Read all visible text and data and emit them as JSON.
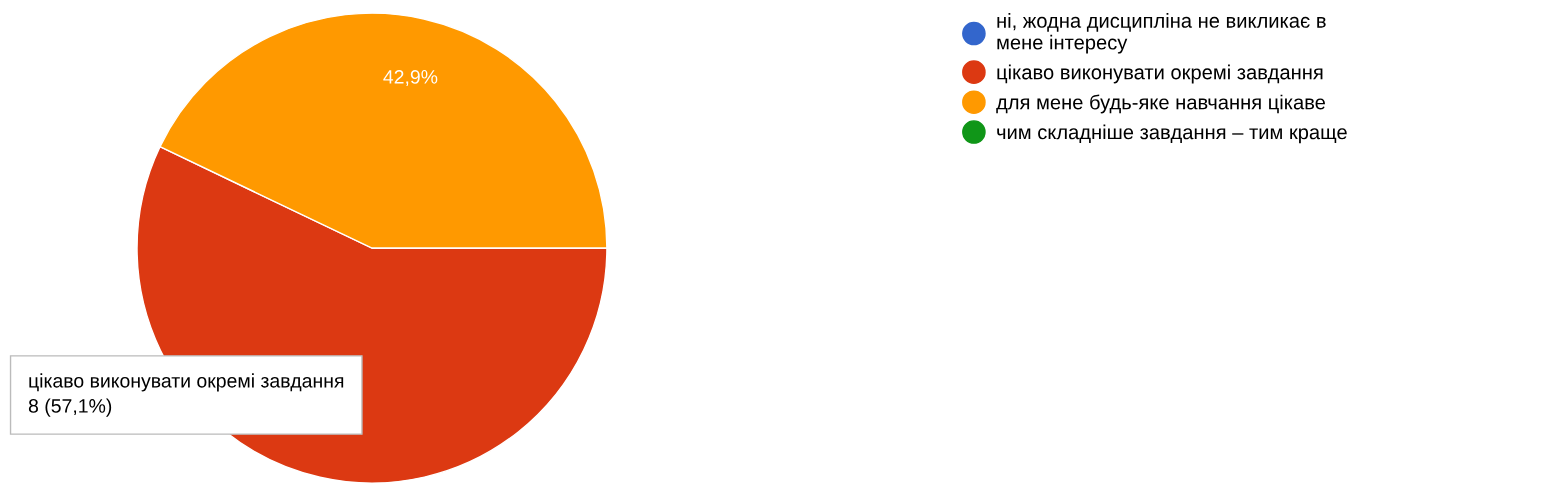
{
  "chart_data": {
    "type": "pie",
    "categories": [
      "ні, жодна дисципліна не викликає в\nмене інтересу",
      "цікаво виконувати окремі завдання",
      "для мене будь-яке навчання цікаве",
      "чим складніше завдання – тим краще"
    ],
    "values": [
      0,
      57.1,
      42.9,
      0
    ],
    "colors": [
      "#3366cc",
      "#dc3912",
      "#ff9900",
      "#109618"
    ],
    "value_labels": [
      null,
      null,
      "42,9%",
      null
    ],
    "legend": "right",
    "annotations": [
      "цікаво виконувати окремі завдання\n8 (57,1%)"
    ]
  }
}
